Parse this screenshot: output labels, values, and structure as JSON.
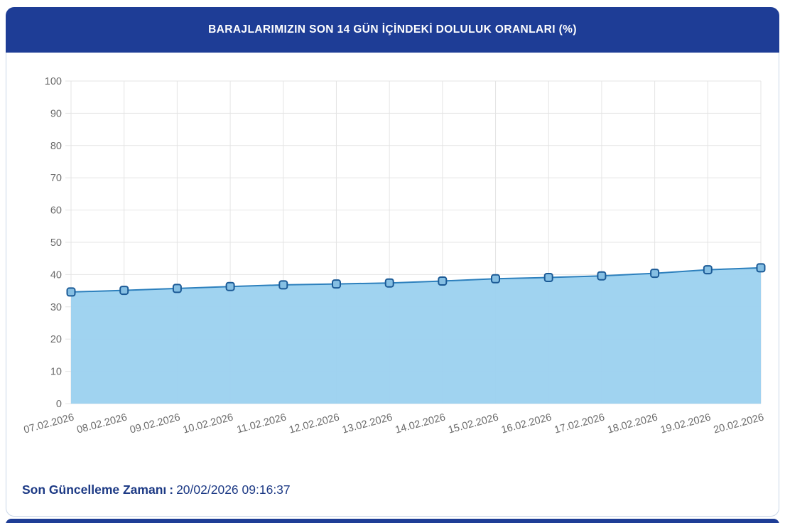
{
  "header": {
    "title": "BARAJLARIMIZIN SON 14 GÜN İÇİNDEKİ DOLULUK ORANLARI (%)",
    "background_color": "#1e3d96",
    "title_color": "#ffffff"
  },
  "chart_data": {
    "type": "area",
    "title": "BARAJLARIMIZIN SON 14 GÜN İÇİNDEKİ DOLULUK ORANLARI (%)",
    "categories": [
      "07.02.2026",
      "08.02.2026",
      "09.02.2026",
      "10.02.2026",
      "11.02.2026",
      "12.02.2026",
      "13.02.2026",
      "14.02.2026",
      "15.02.2026",
      "16.02.2026",
      "17.02.2026",
      "18.02.2026",
      "19.02.2026",
      "20.02.2026"
    ],
    "values": [
      34.6,
      35.1,
      35.7,
      36.3,
      36.8,
      37.1,
      37.4,
      38.0,
      38.7,
      39.1,
      39.6,
      40.4,
      41.5,
      42.1
    ],
    "xlabel": "",
    "ylabel": "",
    "ylim": [
      0,
      100
    ],
    "y_tick_labels": [
      "0",
      "10",
      "20",
      "30",
      "40",
      "50",
      "60",
      "70",
      "80",
      "90",
      "100"
    ],
    "grid": "on",
    "legend": "none",
    "x_label_rotation_deg": -15,
    "colors": {
      "line": "#2d80bd",
      "area_fill": "#9cd1ef",
      "marker_fill": "#85bfe3",
      "marker_border": "#1b5a96",
      "grid": "#e4e4e4",
      "tick_text": "#6b6b6b"
    }
  },
  "footer": {
    "label": "Son Güncelleme Zamanı",
    "separator": ":",
    "value": "20/02/2026 09:16:37"
  }
}
